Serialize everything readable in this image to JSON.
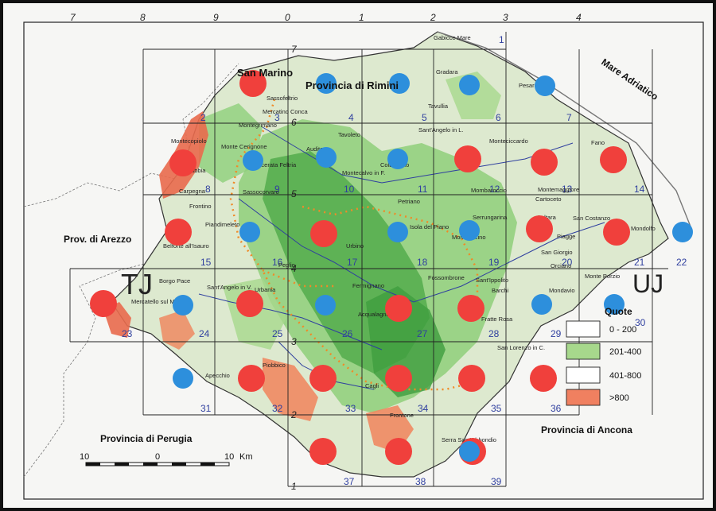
{
  "places": {
    "san_marino": "San Marino",
    "prov_rimini": "Provincia di Rimini",
    "prov_arezzo": "Prov. di Arezzo",
    "prov_perugia": "Provincia di Perugia",
    "prov_ancona": "Provincia di Ancona",
    "mare": "Mare Adriatico",
    "tj": "TJ",
    "uj": "UJ",
    "towns": [
      "Gabicce Mare",
      "Gradara",
      "Sassofeltrio",
      "Mercatino Conca",
      "Tavullia",
      "Montegrimano",
      "Monte Cerignone",
      "Tavoleto",
      "Montecopiolo",
      "Pietrarubbia",
      "Macerata Feltria",
      "Auditore",
      "Montecalvo in F.",
      "Colbordolo",
      "Carpegna",
      "Sassocorvaro",
      "Frontino",
      "Petriano",
      "Piandimeleto",
      "Urbino",
      "Isola del Piano",
      "Montefelcino",
      "Belforte all'Isauro",
      "Peglio",
      "Fermignano",
      "Fossombrone",
      "Sant'Ippolito",
      "Borgo Pace",
      "Sant'Angelo in V.",
      "Urbania",
      "Mercatello sul M.",
      "Acqualagna",
      "Fratte Rosa",
      "Apecchio",
      "Piobbico",
      "Cagli",
      "Frontone",
      "Serra Sant'Abbondio",
      "San Lorenzo in C.",
      "Fano",
      "Cartoceto",
      "Saltara",
      "San Costanzo",
      "Mondolfo",
      "Piagge",
      "San Giorgio",
      "Orciano",
      "Monte Porzio",
      "Barchi",
      "Mondavio",
      "Montemaggiore",
      "Monteciccardo",
      "Mombaroccio",
      "Serrungarina",
      "Pesaro",
      "Sant'Angelo in L."
    ]
  },
  "grid": {
    "top_labels": [
      "7",
      "8",
      "9",
      "0",
      "1",
      "2",
      "3",
      "4"
    ],
    "left_labels": [
      "7",
      "6",
      "5",
      "4",
      "3",
      "2",
      "1"
    ],
    "cells": [
      "1",
      "2",
      "3",
      "4",
      "5",
      "6",
      "7",
      "8",
      "9",
      "10",
      "11",
      "12",
      "13",
      "14",
      "15",
      "16",
      "17",
      "18",
      "19",
      "20",
      "21",
      "22",
      "23",
      "24",
      "25",
      "26",
      "27",
      "28",
      "29",
      "30",
      "31",
      "32",
      "33",
      "34",
      "35",
      "36",
      "37",
      "38",
      "39"
    ]
  },
  "markers": {
    "colors": {
      "red": "#f0403c",
      "blue": "#2d8fdc"
    },
    "red_count": 22,
    "blue_count": 16
  },
  "legend": {
    "title": "Quote",
    "items": [
      {
        "label": "0 - 200",
        "color": "#ffffff"
      },
      {
        "label": "201-400",
        "color": "#a7d88c"
      },
      {
        "label": "401-800",
        "color": "#ffffff"
      },
      {
        "label": ">800",
        "color": "#f08060"
      }
    ]
  },
  "scale": {
    "left": "10",
    "mid": "0",
    "right": "10",
    "unit": "Km"
  },
  "colors": {
    "accent_blue": "#2f3f9f",
    "route_orange": "#f08a28"
  }
}
